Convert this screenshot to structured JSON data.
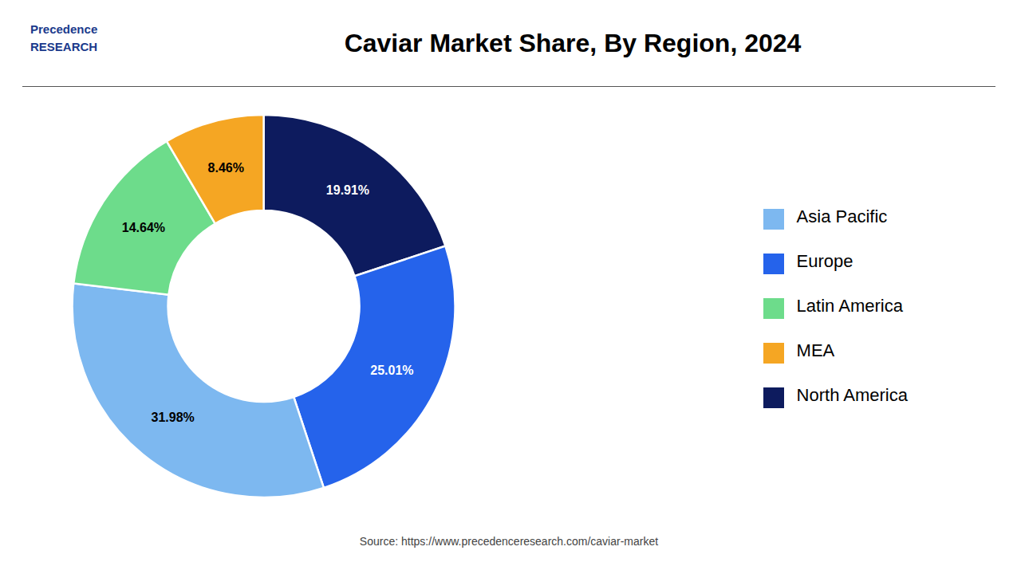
{
  "chart_data": {
    "type": "donut",
    "title": "Caviar Market Share, By Region, 2024",
    "categories": [
      "North America",
      "Europe",
      "Asia Pacific",
      "Latin America",
      "MEA"
    ],
    "values": [
      19.91,
      25.01,
      31.98,
      14.64,
      8.46
    ],
    "value_labels": [
      "19.91%",
      "25.01%",
      "31.98%",
      "14.64%",
      "8.46%"
    ],
    "colors": [
      "#0d1b5e",
      "#2563eb",
      "#7db8f0",
      "#6ddc8b",
      "#f5a623"
    ],
    "data_labels": true,
    "legend": "right",
    "annotations": [
      "Precedence",
      "RESEARCH",
      "Source: https://www.precedenceresearch.com/caviar-market"
    ]
  }
}
